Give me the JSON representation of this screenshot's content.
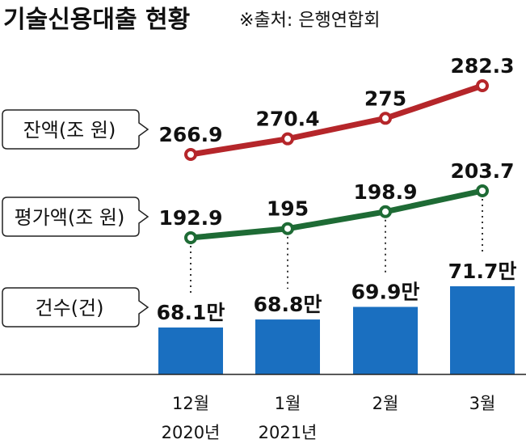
{
  "chart_data": {
    "type": "line+bar",
    "title": "기술신용대출 현황",
    "source": "※출처: 은행연합회",
    "categories": [
      [
        "12월",
        "2020년"
      ],
      [
        "1월",
        "2021년"
      ],
      [
        "2월",
        ""
      ],
      [
        "3월",
        ""
      ]
    ],
    "series": [
      {
        "name": "잔액(조 원)",
        "type": "line",
        "color": "#b5262a",
        "values": [
          266.9,
          270.4,
          275,
          282.3
        ],
        "labels": [
          "266.9",
          "270.4",
          "275",
          "282.3"
        ]
      },
      {
        "name": "평가액(조 원)",
        "type": "line",
        "color": "#1e6b35",
        "values": [
          192.9,
          195,
          198.9,
          203.7
        ],
        "labels": [
          "192.9",
          "195",
          "198.9",
          "203.7"
        ]
      },
      {
        "name": "건수(건)",
        "type": "bar",
        "color": "#1a6fc0",
        "values": [
          68.1,
          68.8,
          69.9,
          71.7
        ],
        "labels": [
          "68.1만",
          "68.8만",
          "69.9만",
          "71.7만"
        ]
      }
    ]
  }
}
